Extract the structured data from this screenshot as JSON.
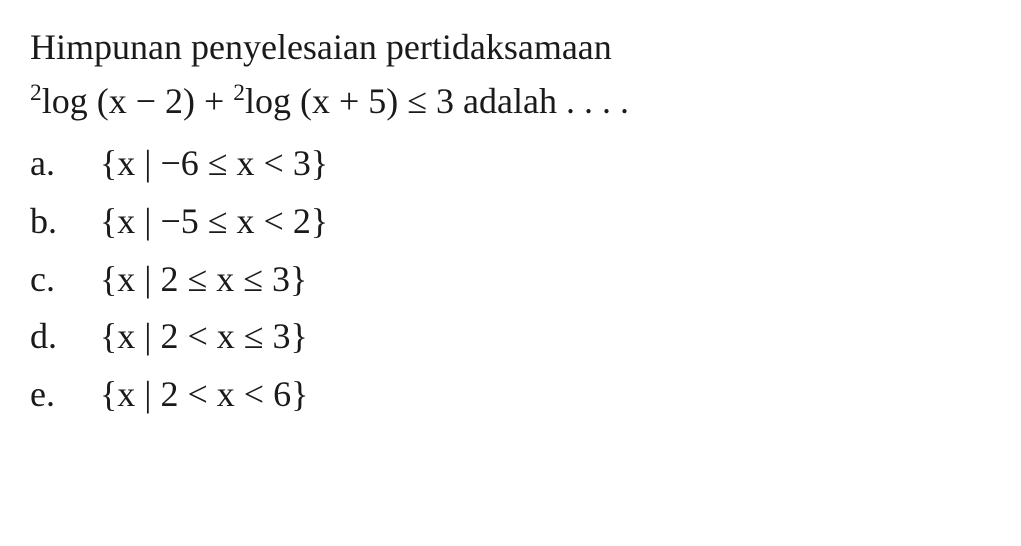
{
  "question": {
    "line1": "Himpunan penyelesaian pertidaksamaan",
    "line2_prefix_sup": "2",
    "line2_part1": "log (x − 2) + ",
    "line2_sup2": "2",
    "line2_part2": "log (x + 5) ≤ 3 adalah . . . ."
  },
  "options": [
    {
      "letter": "a.",
      "text": "{x | −6 ≤ x < 3}"
    },
    {
      "letter": "b.",
      "text": "{x | −5 ≤ x < 2}"
    },
    {
      "letter": "c.",
      "text": "{x | 2 ≤ x ≤ 3}"
    },
    {
      "letter": "d.",
      "text": "{x | 2 < x ≤ 3}"
    },
    {
      "letter": "e.",
      "text": "{x | 2 < x < 6}"
    }
  ],
  "style": {
    "background_color": "#ffffff",
    "text_color": "#1a1a1a",
    "font_family": "Times New Roman",
    "font_size_pt": 27,
    "line_height": 1.5
  }
}
